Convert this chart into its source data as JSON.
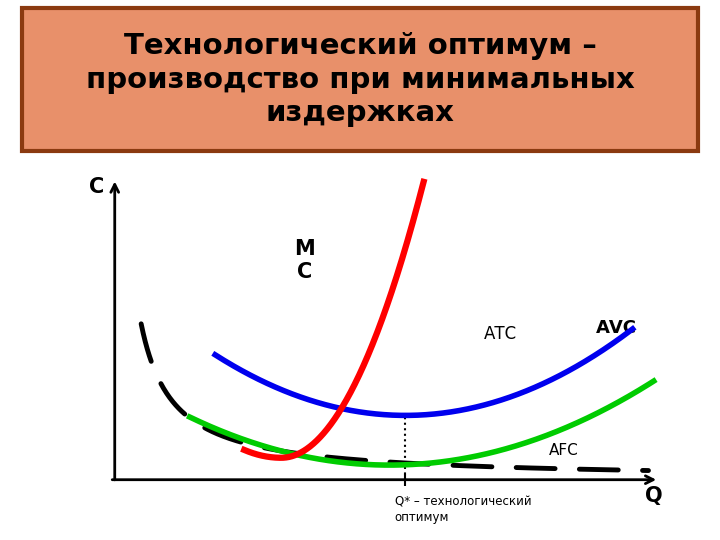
{
  "title_line1": "Технологический оптимум –",
  "title_line2": "производство при минимальных",
  "title_line3": "издержках",
  "title_bg_color": "#E8906A",
  "title_border_color": "#8B3A10",
  "title_fontsize": 21,
  "axis_label_C": "С",
  "axis_label_Q": "Q",
  "q_optimum_label": "Q* – технологический\nоптимум",
  "curve_colors": {
    "MC": "#FF0000",
    "ATC": "#0000EE",
    "AVC": "#00CC00",
    "AFC": "#000000"
  },
  "curve_labels": {
    "MC": "М\nС",
    "ATC": "АТС",
    "AVC": "АVС",
    "AFC": "AFC"
  },
  "q_opt": 0.52,
  "xlim": [
    0,
    1.05
  ],
  "ylim": [
    0,
    1.05
  ]
}
